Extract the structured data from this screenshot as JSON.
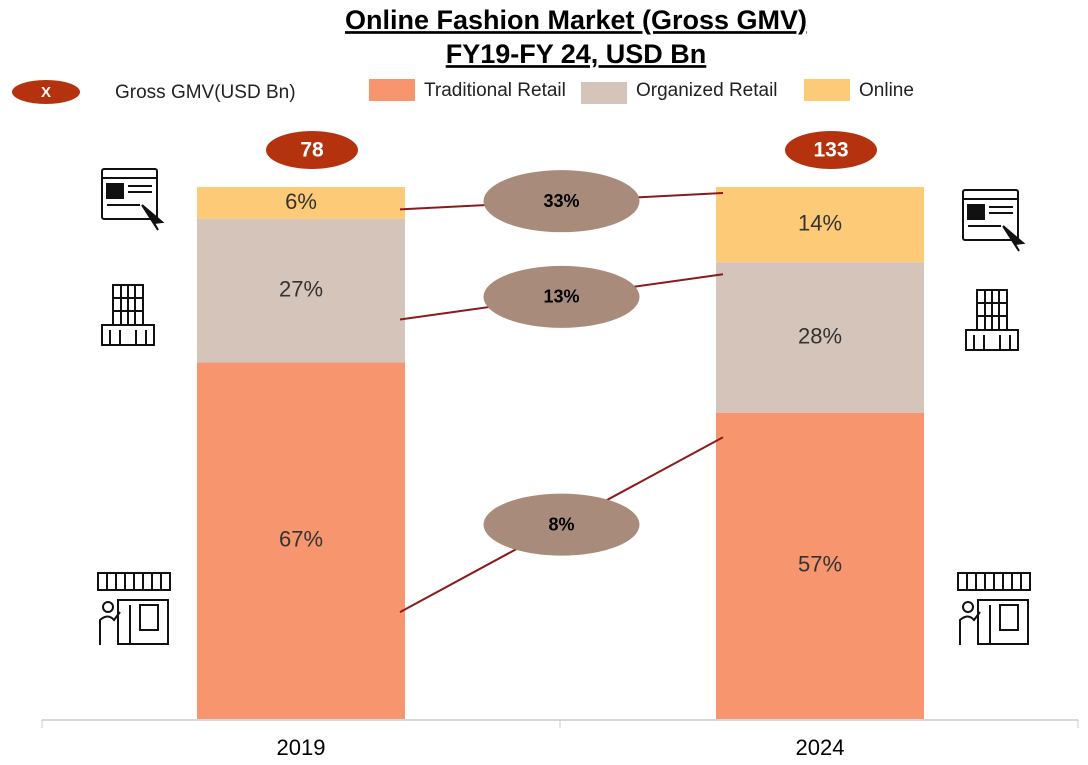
{
  "chart_data": {
    "type": "stacked_percent_bar",
    "title": "Online Fashion Market (Gross GMV)",
    "subtitle": "FY19-FY 24, USD Bn",
    "categories": [
      "2019",
      "2024"
    ],
    "totals_legend": {
      "marker": "X",
      "name": "Gross GMV(USD Bn)",
      "color": "#b5320f"
    },
    "totals": [
      78,
      133
    ],
    "series": [
      {
        "name": "Traditional Retail",
        "color": "#f7956f",
        "values": [
          67,
          57
        ],
        "value_labels": [
          "67%",
          "57%"
        ],
        "growth": 8,
        "growth_label": "8%"
      },
      {
        "name": "Organized Retail",
        "color": "#d5c4b9",
        "values": [
          27,
          28
        ],
        "value_labels": [
          "27%",
          "28%"
        ],
        "growth": 13,
        "growth_label": "13%"
      },
      {
        "name": "Online",
        "color": "#fdcb78",
        "values": [
          6,
          14
        ],
        "value_labels": [
          "6%",
          "14%"
        ],
        "growth": 33,
        "growth_label": "33%"
      }
    ]
  }
}
